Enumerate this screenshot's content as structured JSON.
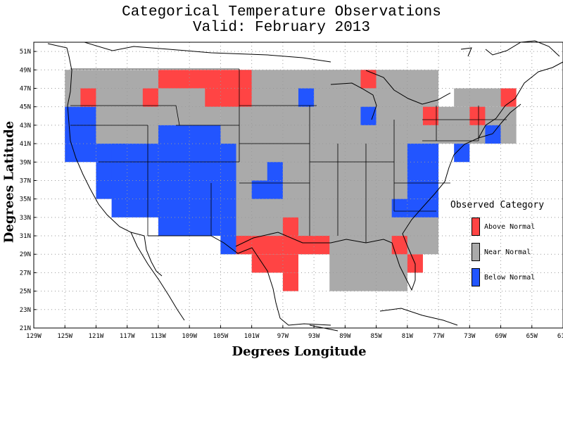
{
  "title_line1": "Categorical Temperature Observations",
  "title_line2": "Valid: February 2013",
  "xlabel": "Degrees Longitude",
  "ylabel": "Degrees Latitude",
  "x_ticks": [
    "129W",
    "125W",
    "121W",
    "117W",
    "113W",
    "109W",
    "105W",
    "101W",
    "97W",
    "93W",
    "89W",
    "85W",
    "81W",
    "77W",
    "73W",
    "69W",
    "65W",
    "61W"
  ],
  "y_ticks": [
    "21N",
    "23N",
    "25N",
    "27N",
    "29N",
    "31N",
    "33N",
    "35N",
    "37N",
    "39N",
    "41N",
    "43N",
    "45N",
    "47N",
    "49N",
    "51N"
  ],
  "legend": {
    "title": "Observed Category",
    "items": [
      {
        "label": "Above Normal",
        "color": "#ff4444"
      },
      {
        "label": "Near Normal",
        "color": "#aaaaaa"
      },
      {
        "label": "Below Normal",
        "color": "#2255ff"
      }
    ]
  },
  "chart_data": {
    "type": "heatmap",
    "title": "Categorical Temperature Observations",
    "subtitle": "Valid: February 2013",
    "xlabel": "Degrees Longitude",
    "ylabel": "Degrees Latitude",
    "xlim": [
      -129,
      -61
    ],
    "ylim": [
      21,
      52
    ],
    "grid": true,
    "legend_position": "right",
    "categories": [
      "Above Normal",
      "Near Normal",
      "Below Normal"
    ],
    "cell_width_deg": 2,
    "cell_height_deg": 2,
    "cells": [
      {
        "lon0": -125,
        "lon1": -105,
        "lat0": 41,
        "lat1": 49,
        "category": "Near Normal"
      },
      {
        "lon0": -105,
        "lon1": -77,
        "lat0": 29,
        "lat1": 49,
        "category": "Near Normal"
      },
      {
        "lon0": -91,
        "lon1": -81,
        "lat0": 25,
        "lat1": 49,
        "category": "Near Normal"
      },
      {
        "lon0": -77,
        "lon1": -67,
        "lat0": 41,
        "lat1": 45,
        "category": "Near Normal"
      },
      {
        "lon0": -75,
        "lon1": -69,
        "lat0": 45,
        "lat1": 47,
        "category": "Near Normal"
      },
      {
        "lon0": -85,
        "lon1": -81,
        "lat0": 25,
        "lat1": 33,
        "category": "Near Normal"
      },
      {
        "lon0": -125,
        "lon1": -121,
        "lat0": 39,
        "lat1": 45,
        "category": "Below Normal"
      },
      {
        "lon0": -121,
        "lon1": -117,
        "lat0": 35,
        "lat1": 41,
        "category": "Below Normal"
      },
      {
        "lon0": -119,
        "lon1": -105,
        "lat0": 33,
        "lat1": 41,
        "category": "Below Normal"
      },
      {
        "lon0": -113,
        "lon1": -105,
        "lat0": 31,
        "lat1": 43,
        "category": "Below Normal"
      },
      {
        "lon0": -109,
        "lon1": -105,
        "lat0": 41,
        "lat1": 43,
        "category": "Below Normal"
      },
      {
        "lon0": -105,
        "lon1": -103,
        "lat0": 29,
        "lat1": 41,
        "category": "Below Normal"
      },
      {
        "lon0": -101,
        "lon1": -97,
        "lat0": 35,
        "lat1": 37,
        "category": "Below Normal"
      },
      {
        "lon0": -99,
        "lon1": -97,
        "lat0": 37,
        "lat1": 39,
        "category": "Below Normal"
      },
      {
        "lon0": -95,
        "lon1": -93,
        "lat0": 45,
        "lat1": 47,
        "category": "Below Normal"
      },
      {
        "lon0": -87,
        "lon1": -85,
        "lat0": 43,
        "lat1": 45,
        "category": "Below Normal"
      },
      {
        "lon0": -83,
        "lon1": -77,
        "lat0": 33,
        "lat1": 35,
        "category": "Below Normal"
      },
      {
        "lon0": -81,
        "lon1": -77,
        "lat0": 35,
        "lat1": 41,
        "category": "Below Normal"
      },
      {
        "lon0": -79,
        "lon1": -77,
        "lat0": 39,
        "lat1": 41,
        "category": "Below Normal"
      },
      {
        "lon0": -75,
        "lon1": -73,
        "lat0": 39,
        "lat1": 41,
        "category": "Below Normal"
      },
      {
        "lon0": -71,
        "lon1": -69,
        "lat0": 41,
        "lat1": 43,
        "category": "Below Normal"
      },
      {
        "lon0": -113,
        "lon1": -101,
        "lat0": 47,
        "lat1": 49,
        "category": "Above Normal"
      },
      {
        "lon0": -103,
        "lon1": -101,
        "lat0": 45,
        "lat1": 47,
        "category": "Above Normal"
      },
      {
        "lon0": -107,
        "lon1": -103,
        "lat0": 45,
        "lat1": 47,
        "category": "Above Normal"
      },
      {
        "lon0": -115,
        "lon1": -113,
        "lat0": 45,
        "lat1": 47,
        "category": "Above Normal"
      },
      {
        "lon0": -123,
        "lon1": -121,
        "lat0": 45,
        "lat1": 47,
        "category": "Above Normal"
      },
      {
        "lon0": -87,
        "lon1": -85,
        "lat0": 47,
        "lat1": 49,
        "category": "Above Normal"
      },
      {
        "lon0": -103,
        "lon1": -91,
        "lat0": 29,
        "lat1": 31,
        "category": "Above Normal"
      },
      {
        "lon0": -97,
        "lon1": -95,
        "lat0": 31,
        "lat1": 33,
        "category": "Above Normal"
      },
      {
        "lon0": -101,
        "lon1": -95,
        "lat0": 27,
        "lat1": 29,
        "category": "Above Normal"
      },
      {
        "lon0": -97,
        "lon1": -95,
        "lat0": 25,
        "lat1": 27,
        "category": "Above Normal"
      },
      {
        "lon0": -83,
        "lon1": -81,
        "lat0": 29,
        "lat1": 31,
        "category": "Above Normal"
      },
      {
        "lon0": -81,
        "lon1": -79,
        "lat0": 27,
        "lat1": 29,
        "category": "Above Normal"
      },
      {
        "lon0": -79,
        "lon1": -77,
        "lat0": 43,
        "lat1": 45,
        "category": "Above Normal"
      },
      {
        "lon0": -73,
        "lon1": -71,
        "lat0": 43,
        "lat1": 45,
        "category": "Above Normal"
      },
      {
        "lon0": -69,
        "lon1": -67,
        "lat0": 45,
        "lat1": 47,
        "category": "Above Normal"
      }
    ]
  }
}
